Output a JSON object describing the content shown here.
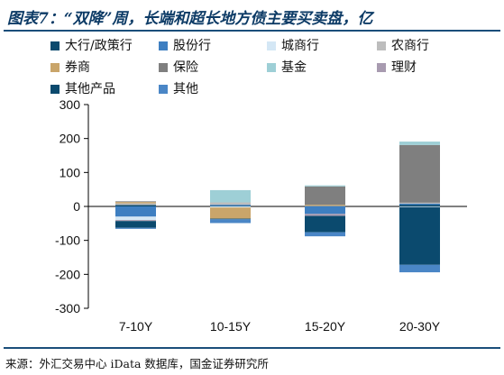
{
  "header": {
    "title": "图表7：“双降”周，长端和超长地方债主要买卖盘，亿"
  },
  "footer": {
    "source": "来源：外汇交易中心 iData 数据库，国金证券研究所"
  },
  "colors": {
    "axis": "#000000",
    "rule": "#1a4e7a",
    "title": "#0d3b66"
  },
  "chart_data": {
    "type": "bar",
    "stacked": true,
    "categories": [
      "7-10Y",
      "10-15Y",
      "15-20Y",
      "20-30Y"
    ],
    "ylim": [
      -300,
      300
    ],
    "yticks": [
      -300,
      -200,
      -100,
      0,
      100,
      200,
      300
    ],
    "legend_position": "top",
    "series": [
      {
        "name": "大行/政策行",
        "color": "#0b4a6e",
        "values": [
          4,
          2,
          1,
          5
        ]
      },
      {
        "name": "股份行",
        "color": "#3e7fc1",
        "values": [
          -30,
          3,
          -22,
          3
        ]
      },
      {
        "name": "城商行",
        "color": "#d4e7f5",
        "values": [
          -10,
          -3,
          0,
          -2
        ]
      },
      {
        "name": "农商行",
        "color": "#bdbdbd",
        "values": [
          5,
          7,
          1,
          3
        ]
      },
      {
        "name": "券商",
        "color": "#c9a56a",
        "values": [
          4,
          -33,
          3,
          0
        ]
      },
      {
        "name": "保险",
        "color": "#7f7f7f",
        "values": [
          2,
          0,
          54,
          170
        ]
      },
      {
        "name": "基金",
        "color": "#9ecfd6",
        "values": [
          0,
          36,
          3,
          10
        ]
      },
      {
        "name": "理财",
        "color": "#a89bb0",
        "values": [
          -3,
          0,
          -6,
          0
        ]
      },
      {
        "name": "其他产品",
        "color": "#0b4a6e",
        "values": [
          -20,
          -2,
          -48,
          -170
        ]
      },
      {
        "name": "其他",
        "color": "#4a86c6",
        "values": [
          -3,
          -11,
          -12,
          -22
        ]
      }
    ]
  }
}
